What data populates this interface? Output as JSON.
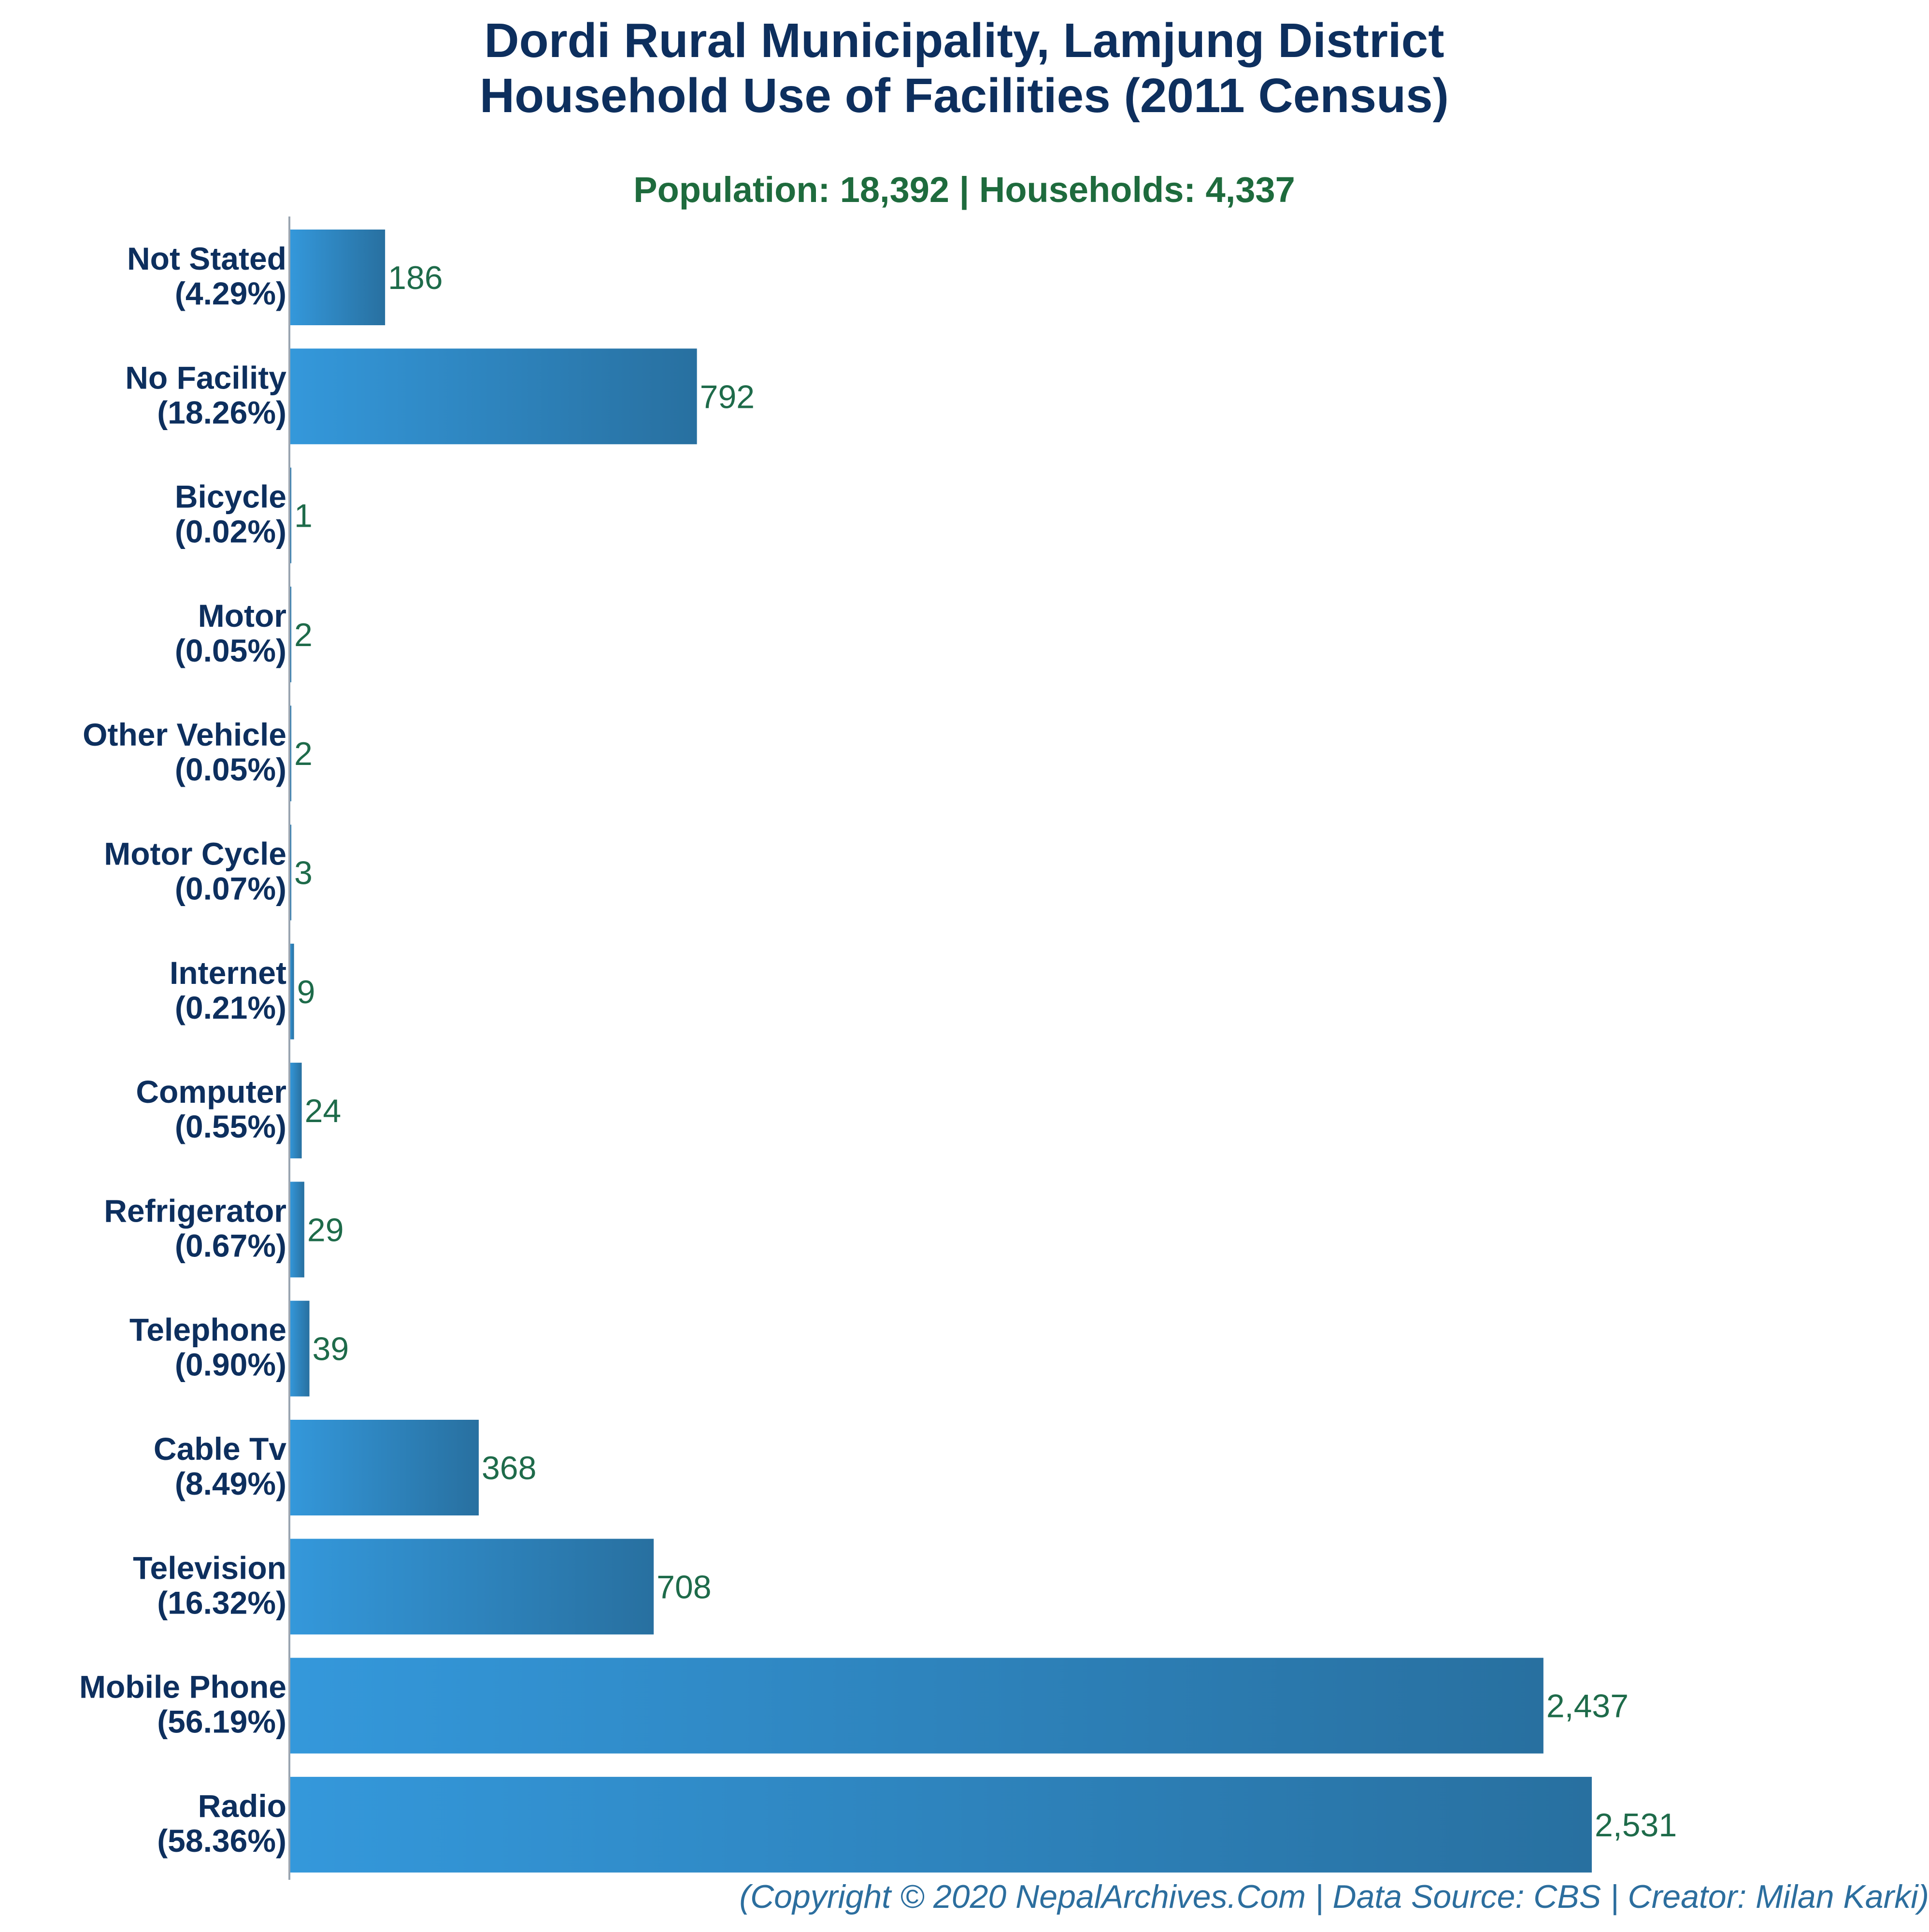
{
  "chart_data": {
    "type": "bar",
    "orientation": "horizontal",
    "title_line1": "Dordi Rural Municipality, Lamjung District",
    "title_line2": "Household Use of Facilities (2011 Census)",
    "subtitle": "Population: 18,392 | Households: 4,337",
    "footer": "(Copyright © 2020 NepalArchives.Com | Data Source: CBS | Creator: Milan Karki)",
    "categories": [
      "Not Stated",
      "No Facility",
      "Bicycle",
      "Motor",
      "Other Vehicle",
      "Motor Cycle",
      "Internet",
      "Computer",
      "Refrigerator",
      "Telephone",
      "Cable Tv",
      "Television",
      "Mobile Phone",
      "Radio"
    ],
    "percentages": [
      "(4.29%)",
      "(18.26%)",
      "(0.02%)",
      "(0.05%)",
      "(0.05%)",
      "(0.07%)",
      "(0.21%)",
      "(0.55%)",
      "(0.67%)",
      "(0.90%)",
      "(8.49%)",
      "(16.32%)",
      "(56.19%)",
      "(58.36%)"
    ],
    "values": [
      186,
      792,
      1,
      2,
      2,
      3,
      9,
      24,
      29,
      39,
      368,
      708,
      2437,
      2531
    ],
    "value_labels": [
      "186",
      "792",
      "1",
      "2",
      "2",
      "3",
      "9",
      "24",
      "29",
      "39",
      "368",
      "708",
      "2,437",
      "2,531"
    ],
    "xlim": [
      0,
      2531
    ],
    "grid": false,
    "legend": "none",
    "colors": {
      "title": "#0d2f5e",
      "subtitle": "#1e6b3d",
      "category_label": "#0d2f5e",
      "value_label": "#1e6b4a",
      "footer": "#2c6e9e",
      "bar_start": "#3498db",
      "bar_end": "#2870a0",
      "axis": "#9aa5b1"
    }
  }
}
